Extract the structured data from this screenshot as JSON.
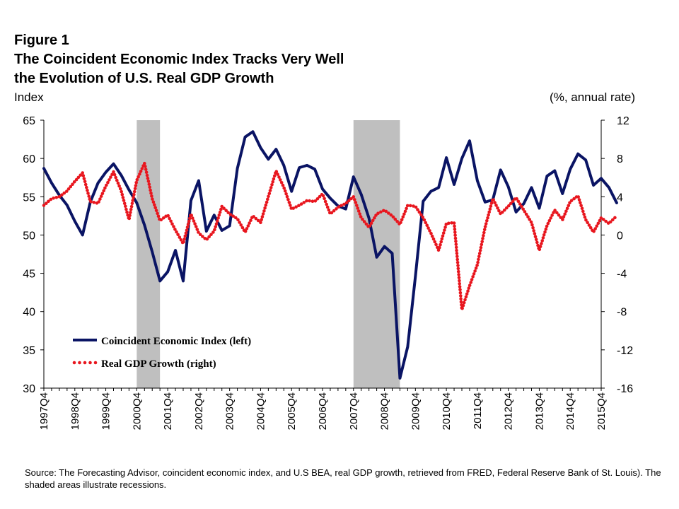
{
  "title": {
    "line1": "Figure 1",
    "line2": "The Coincident Economic Index Tracks Very Well",
    "line3": "the Evolution of U.S. Real GDP Growth"
  },
  "source": "Source: The Forecasting Advisor, coincident economic index, and U.S BEA, real GDP growth, retrieved from FRED, Federal Reserve Bank of St. Louis). The shaded areas illustrate recessions.",
  "chart_data": {
    "type": "line",
    "ylabel_left": "Index",
    "ylabel_right": "(%, annual rate)",
    "ylim_left": [
      30,
      65
    ],
    "ylim_right": [
      -16,
      12
    ],
    "yticks_left": [
      30,
      35,
      40,
      45,
      50,
      55,
      60,
      65
    ],
    "yticks_right": [
      -16,
      -12,
      -8,
      -4,
      0,
      4,
      8,
      12
    ],
    "xlim": [
      1997.75,
      2015.75
    ],
    "xticks": [
      "1997Q4",
      "1998Q4",
      "1999Q4",
      "2000Q4",
      "2001Q4",
      "2002Q4",
      "2003Q4",
      "2004Q4",
      "2005Q4",
      "2006Q4",
      "2007Q4",
      "2008Q4",
      "2009Q4",
      "2010Q4",
      "2011Q4",
      "2012Q4",
      "2013Q4",
      "2014Q4",
      "2015Q4"
    ],
    "recessions": [
      [
        2000.75,
        2001.5
      ],
      [
        2007.75,
        2009.25
      ]
    ],
    "legend_position": "lower-left",
    "grid": false,
    "series": [
      {
        "name": "Coincident Economic Index (left)",
        "axis": "left",
        "style": "solid",
        "color": "#0a1464",
        "points": [
          [
            1997.75,
            58.7
          ],
          [
            1998.0,
            56.8
          ],
          [
            1998.25,
            55.2
          ],
          [
            1998.5,
            53.9
          ],
          [
            1998.75,
            51.8
          ],
          [
            1999.0,
            50.0
          ],
          [
            1999.25,
            54.3
          ],
          [
            1999.5,
            56.8
          ],
          [
            1999.75,
            58.2
          ],
          [
            2000.0,
            59.3
          ],
          [
            2000.25,
            57.8
          ],
          [
            2000.5,
            55.9
          ],
          [
            2000.75,
            54.2
          ],
          [
            2001.0,
            51.3
          ],
          [
            2001.25,
            47.8
          ],
          [
            2001.5,
            44.0
          ],
          [
            2001.75,
            45.2
          ],
          [
            2002.0,
            48.0
          ],
          [
            2002.25,
            44.0
          ],
          [
            2002.5,
            54.5
          ],
          [
            2002.75,
            57.1
          ],
          [
            2003.0,
            50.5
          ],
          [
            2003.25,
            52.6
          ],
          [
            2003.5,
            50.6
          ],
          [
            2003.75,
            51.2
          ],
          [
            2004.0,
            58.7
          ],
          [
            2004.25,
            62.8
          ],
          [
            2004.5,
            63.5
          ],
          [
            2004.75,
            61.4
          ],
          [
            2005.0,
            59.9
          ],
          [
            2005.25,
            61.2
          ],
          [
            2005.5,
            59.1
          ],
          [
            2005.75,
            55.7
          ],
          [
            2006.0,
            58.8
          ],
          [
            2006.25,
            59.1
          ],
          [
            2006.5,
            58.6
          ],
          [
            2006.75,
            56.0
          ],
          [
            2007.0,
            54.8
          ],
          [
            2007.25,
            53.8
          ],
          [
            2007.5,
            53.4
          ],
          [
            2007.75,
            57.6
          ],
          [
            2008.0,
            55.3
          ],
          [
            2008.25,
            52.2
          ],
          [
            2008.5,
            47.1
          ],
          [
            2008.75,
            48.5
          ],
          [
            2009.0,
            47.6
          ],
          [
            2009.25,
            31.3
          ],
          [
            2009.5,
            35.4
          ],
          [
            2009.75,
            44.6
          ],
          [
            2010.0,
            54.4
          ],
          [
            2010.25,
            55.7
          ],
          [
            2010.5,
            56.2
          ],
          [
            2010.75,
            60.1
          ],
          [
            2011.0,
            56.6
          ],
          [
            2011.25,
            60.0
          ],
          [
            2011.5,
            62.3
          ],
          [
            2011.75,
            57.1
          ],
          [
            2012.0,
            54.3
          ],
          [
            2012.25,
            54.6
          ],
          [
            2012.5,
            58.5
          ],
          [
            2012.75,
            56.3
          ],
          [
            2013.0,
            53.0
          ],
          [
            2013.25,
            54.1
          ],
          [
            2013.5,
            56.2
          ],
          [
            2013.75,
            53.5
          ],
          [
            2014.0,
            57.7
          ],
          [
            2014.25,
            58.4
          ],
          [
            2014.5,
            55.4
          ],
          [
            2014.75,
            58.6
          ],
          [
            2015.0,
            60.6
          ],
          [
            2015.25,
            59.8
          ],
          [
            2015.5,
            56.5
          ],
          [
            2015.75,
            57.4
          ],
          [
            2016.0,
            56.2
          ],
          [
            2016.25,
            54.2
          ]
        ]
      },
      {
        "name": "Real GDP Growth (right)",
        "axis": "right",
        "style": "dotted",
        "color": "#e8161e",
        "points": [
          [
            1997.75,
            3.1
          ],
          [
            1998.0,
            3.8
          ],
          [
            1998.25,
            4.0
          ],
          [
            1998.5,
            4.6
          ],
          [
            1998.75,
            5.6
          ],
          [
            1999.0,
            6.5
          ],
          [
            1999.25,
            3.5
          ],
          [
            1999.5,
            3.3
          ],
          [
            1999.75,
            5.1
          ],
          [
            2000.0,
            6.6
          ],
          [
            2000.25,
            4.6
          ],
          [
            2000.5,
            1.6
          ],
          [
            2000.75,
            5.7
          ],
          [
            2001.0,
            7.5
          ],
          [
            2001.25,
            3.8
          ],
          [
            2001.5,
            1.5
          ],
          [
            2001.75,
            2.1
          ],
          [
            2002.0,
            0.5
          ],
          [
            2002.25,
            -0.9
          ],
          [
            2002.5,
            2.2
          ],
          [
            2002.75,
            0.2
          ],
          [
            2003.0,
            -0.5
          ],
          [
            2003.25,
            0.4
          ],
          [
            2003.5,
            3.0
          ],
          [
            2003.75,
            2.2
          ],
          [
            2004.0,
            1.7
          ],
          [
            2004.25,
            0.3
          ],
          [
            2004.5,
            2.0
          ],
          [
            2004.75,
            1.3
          ],
          [
            2005.0,
            4.0
          ],
          [
            2005.25,
            6.7
          ],
          [
            2005.5,
            5.0
          ],
          [
            2005.75,
            2.7
          ],
          [
            2006.0,
            3.1
          ],
          [
            2006.25,
            3.6
          ],
          [
            2006.5,
            3.5
          ],
          [
            2006.75,
            4.3
          ],
          [
            2007.0,
            2.2
          ],
          [
            2007.25,
            2.9
          ],
          [
            2007.5,
            3.3
          ],
          [
            2007.75,
            4.0
          ],
          [
            2008.0,
            1.8
          ],
          [
            2008.25,
            0.8
          ],
          [
            2008.5,
            2.2
          ],
          [
            2008.75,
            2.6
          ],
          [
            2009.0,
            2.0
          ],
          [
            2009.25,
            1.1
          ],
          [
            2009.5,
            3.1
          ],
          [
            2009.75,
            3.0
          ],
          [
            2010.0,
            1.8
          ],
          [
            2010.25,
            0.2
          ],
          [
            2010.5,
            -1.6
          ],
          [
            2010.75,
            1.2
          ],
          [
            2011.0,
            1.3
          ],
          [
            2011.25,
            -7.8
          ],
          [
            2011.5,
            -5.3
          ],
          [
            2011.75,
            -3.1
          ],
          [
            2012.0,
            0.8
          ],
          [
            2012.25,
            3.8
          ],
          [
            2012.5,
            2.2
          ],
          [
            2012.75,
            3.0
          ],
          [
            2013.0,
            3.9
          ],
          [
            2013.25,
            2.6
          ],
          [
            2013.5,
            1.3
          ],
          [
            2013.75,
            -1.6
          ],
          [
            2014.0,
            1.0
          ],
          [
            2014.25,
            2.6
          ],
          [
            2014.5,
            1.6
          ],
          [
            2014.75,
            3.5
          ],
          [
            2015.0,
            4.1
          ],
          [
            2015.25,
            1.6
          ],
          [
            2015.5,
            0.3
          ],
          [
            2015.75,
            1.8
          ],
          [
            2016.0,
            1.2
          ],
          [
            2016.25,
            2.0
          ]
        ]
      }
    ]
  }
}
